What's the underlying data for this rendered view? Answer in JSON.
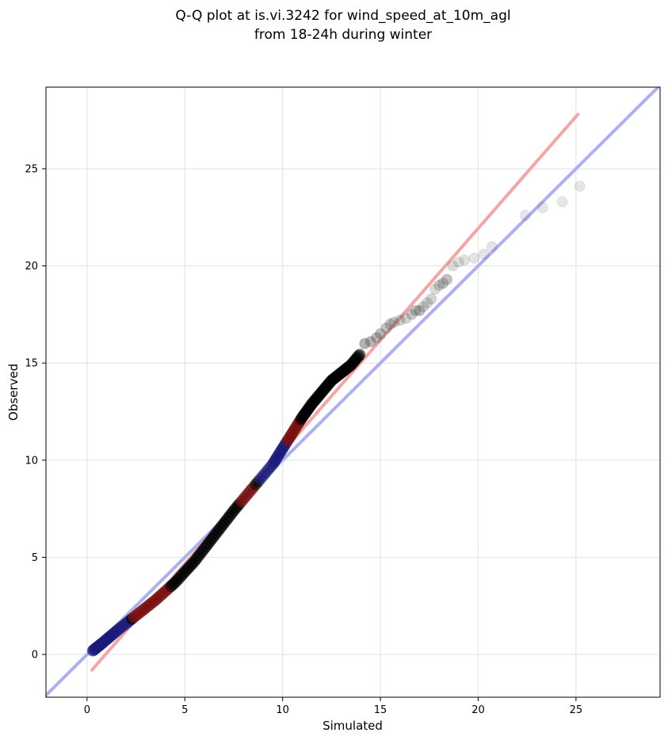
{
  "chart_data": {
    "type": "scatter",
    "title": [
      "Q-Q plot at is.vi.3242 for wind_speed_at_10m_agl",
      "from 18-24h during winter"
    ],
    "xlabel": "Simulated",
    "ylabel": "Observed",
    "xlim": [
      -2.1,
      29.3
    ],
    "ylim": [
      -2.2,
      29.2
    ],
    "xticks": [
      0,
      5,
      10,
      15,
      20,
      25
    ],
    "yticks": [
      0,
      5,
      10,
      15,
      20,
      25
    ],
    "grid": true,
    "colors": {
      "points": "#000000",
      "identity_line": "#aab0f2",
      "fit_line": "#f4a5a5",
      "low_overlay": "#1a1a7a",
      "mid_overlay": "#7a1010"
    },
    "reference_lines": [
      {
        "kind": "identity",
        "x": [
          -2.1,
          29.3
        ],
        "y": [
          -2.1,
          29.3
        ]
      },
      {
        "kind": "fit",
        "x": [
          0.25,
          25.1
        ],
        "y": [
          -0.8,
          27.8
        ]
      }
    ],
    "qq_curve": {
      "x": [
        0.3,
        0.8,
        1.5,
        2.5,
        3.5,
        4.5,
        5.5,
        6.5,
        7.5,
        8.5,
        9.5,
        10.0,
        10.5,
        11.0,
        11.5,
        12.0,
        12.5,
        13.0,
        13.5,
        14.0
      ],
      "y": [
        0.2,
        0.6,
        1.2,
        2.0,
        2.8,
        3.7,
        4.8,
        6.1,
        7.4,
        8.6,
        9.8,
        10.6,
        11.4,
        12.2,
        12.9,
        13.5,
        14.1,
        14.5,
        14.9,
        15.5
      ]
    },
    "tail_points": {
      "x": [
        14.2,
        14.5,
        14.8,
        15.0,
        15.3,
        15.5,
        15.7,
        16.0,
        16.3,
        16.6,
        16.8,
        17.0,
        17.2,
        17.4,
        17.6,
        17.8,
        18.0,
        18.2,
        18.4,
        18.7,
        19.0,
        19.3,
        19.8,
        20.3,
        20.7,
        22.4,
        23.3,
        24.3,
        25.2
      ],
      "y": [
        16.0,
        16.1,
        16.3,
        16.5,
        16.8,
        17.0,
        17.1,
        17.2,
        17.3,
        17.5,
        17.7,
        17.7,
        17.9,
        18.1,
        18.3,
        18.8,
        19.0,
        19.1,
        19.3,
        20.0,
        20.2,
        20.3,
        20.4,
        20.6,
        21.0,
        22.6,
        23.0,
        23.3,
        24.1
      ],
      "opacity": [
        0.45,
        0.42,
        0.4,
        0.38,
        0.35,
        0.33,
        0.3,
        0.28,
        0.26,
        0.3,
        0.34,
        0.38,
        0.28,
        0.26,
        0.25,
        0.22,
        0.28,
        0.34,
        0.36,
        0.2,
        0.18,
        0.18,
        0.16,
        0.16,
        0.16,
        0.15,
        0.15,
        0.15,
        0.15
      ]
    }
  }
}
